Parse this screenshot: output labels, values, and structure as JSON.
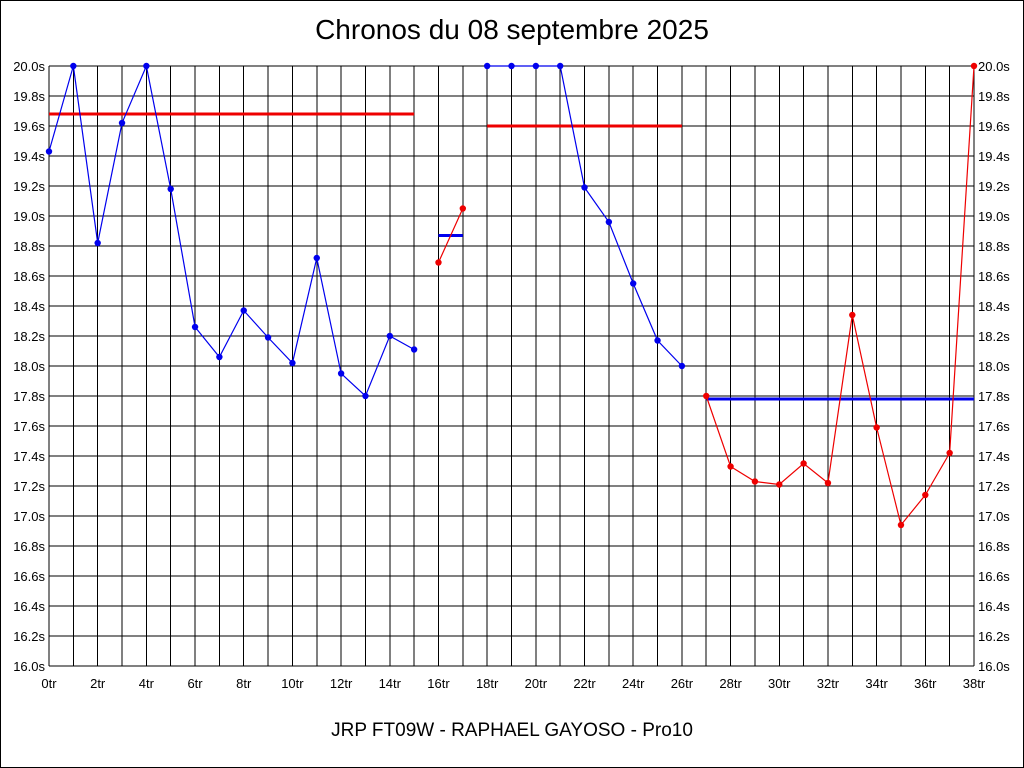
{
  "chart_data": {
    "type": "line",
    "title": "Chronos du 08 septembre 2025",
    "subtitle": "JRP FT09W - RAPHAEL GAYOSO - Pro10",
    "xlabel": "",
    "ylabel": "",
    "xlim": [
      0,
      38
    ],
    "ylim": [
      16.0,
      20.0
    ],
    "grid": true,
    "x_ticks": [
      0,
      2,
      4,
      6,
      8,
      10,
      12,
      14,
      16,
      18,
      20,
      22,
      24,
      26,
      28,
      30,
      32,
      34,
      36,
      38
    ],
    "x_tick_labels": [
      "0tr",
      "2tr",
      "4tr",
      "6tr",
      "8tr",
      "10tr",
      "12tr",
      "14tr",
      "16tr",
      "18tr",
      "20tr",
      "22tr",
      "24tr",
      "26tr",
      "28tr",
      "30tr",
      "32tr",
      "34tr",
      "36tr",
      "38tr"
    ],
    "y_ticks": [
      16.0,
      16.2,
      16.4,
      16.6,
      16.8,
      17.0,
      17.2,
      17.4,
      17.6,
      17.8,
      18.0,
      18.2,
      18.4,
      18.6,
      18.8,
      19.0,
      19.2,
      19.4,
      19.6,
      19.8,
      20.0
    ],
    "y_tick_labels": [
      "16.0s",
      "16.2s",
      "16.4s",
      "16.6s",
      "16.8s",
      "17.0s",
      "17.2s",
      "17.4s",
      "17.6s",
      "17.8s",
      "18.0s",
      "18.2s",
      "18.4s",
      "18.6s",
      "18.8s",
      "19.0s",
      "19.2s",
      "19.4s",
      "19.6s",
      "19.8s",
      "20.0s"
    ],
    "series": [
      {
        "color": "#0000ee",
        "points": [
          [
            0,
            19.43
          ],
          [
            1,
            20.0
          ],
          [
            2,
            18.82
          ],
          [
            3,
            19.62
          ],
          [
            4,
            20.0
          ],
          [
            5,
            19.18
          ],
          [
            6,
            18.26
          ],
          [
            7,
            18.06
          ],
          [
            8,
            18.37
          ],
          [
            9,
            18.19
          ],
          [
            10,
            18.02
          ],
          [
            11,
            18.72
          ],
          [
            12,
            17.95
          ],
          [
            13,
            17.8
          ],
          [
            14,
            18.2
          ],
          [
            15,
            18.11
          ]
        ]
      },
      {
        "color": "#ee0000",
        "points": [
          [
            16,
            18.69
          ],
          [
            17,
            19.05
          ]
        ]
      },
      {
        "color": "#0000ee",
        "points": [
          [
            18,
            20.0
          ],
          [
            19,
            20.0
          ],
          [
            20,
            20.0
          ],
          [
            21,
            20.0
          ],
          [
            22,
            19.19
          ],
          [
            23,
            18.96
          ],
          [
            24,
            18.55
          ],
          [
            25,
            18.17
          ],
          [
            26,
            18.0
          ]
        ]
      },
      {
        "color": "#ee0000",
        "points": [
          [
            27,
            17.8
          ],
          [
            28,
            17.33
          ],
          [
            29,
            17.23
          ],
          [
            30,
            17.21
          ],
          [
            31,
            17.35
          ],
          [
            32,
            17.22
          ],
          [
            33,
            18.34
          ],
          [
            34,
            17.59
          ],
          [
            35,
            16.94
          ],
          [
            36,
            17.14
          ],
          [
            37,
            17.42
          ],
          [
            38,
            20.0
          ]
        ]
      }
    ],
    "average_lines": [
      {
        "color": "#ee0000",
        "x": [
          0,
          15
        ],
        "y": 19.68
      },
      {
        "color": "#0000ee",
        "x": [
          16,
          17
        ],
        "y": 18.87
      },
      {
        "color": "#ee0000",
        "x": [
          18,
          26
        ],
        "y": 19.6
      },
      {
        "color": "#0000ee",
        "x": [
          27,
          38
        ],
        "y": 17.78
      }
    ]
  }
}
